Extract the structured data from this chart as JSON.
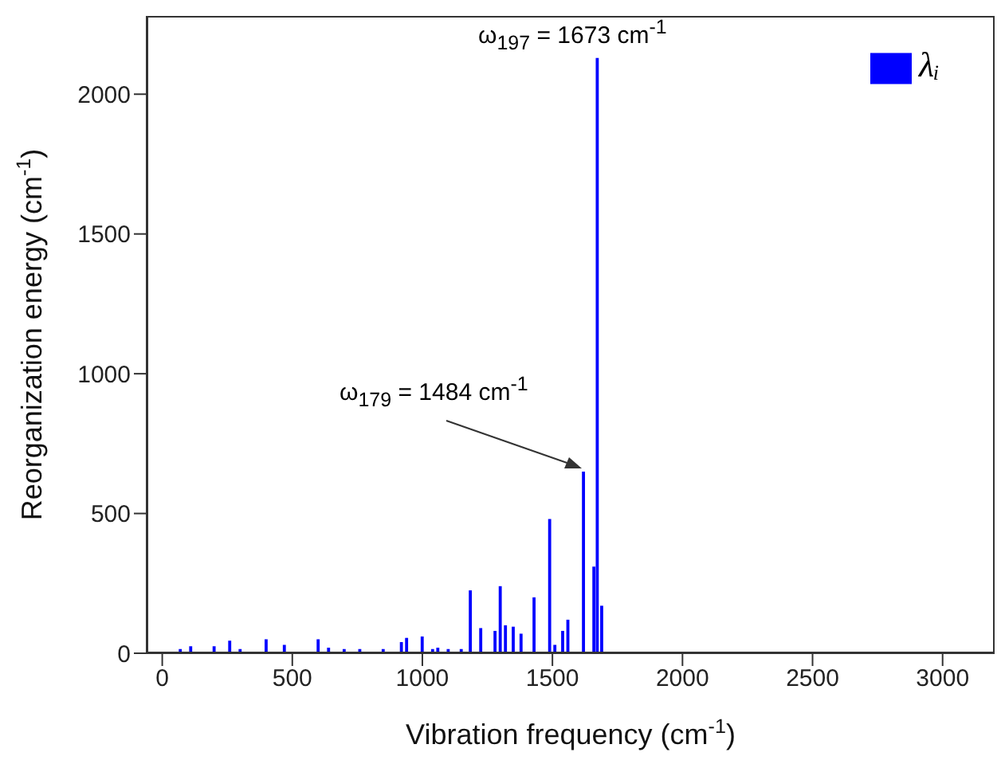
{
  "chart_data": {
    "type": "bar",
    "xlabel": "Vibration frequency (cm$^{-1}$)",
    "ylabel": "Reorganization energy (cm$^{-1}$)",
    "x": [
      70,
      110,
      200,
      260,
      300,
      400,
      470,
      600,
      640,
      700,
      760,
      850,
      920,
      940,
      1000,
      1040,
      1060,
      1100,
      1150,
      1185,
      1225,
      1280,
      1300,
      1320,
      1350,
      1380,
      1430,
      1490,
      1510,
      1540,
      1560,
      1620,
      1660,
      1673,
      1690
    ],
    "series": [
      {
        "name": "λᵢ",
        "color": "#0000ff",
        "values": [
          15,
          25,
          25,
          45,
          15,
          50,
          30,
          50,
          20,
          15,
          15,
          15,
          40,
          55,
          60,
          15,
          20,
          15,
          15,
          225,
          90,
          80,
          240,
          100,
          95,
          70,
          200,
          480,
          30,
          80,
          120,
          650,
          310,
          2130,
          170
        ]
      }
    ],
    "xlim": [
      -60,
      3200
    ],
    "xticks": [
      0,
      500,
      1000,
      1500,
      2000,
      2500,
      3000
    ],
    "ylim": [
      0,
      2280
    ],
    "yticks": [
      0,
      500,
      1000,
      1500,
      2000
    ],
    "legend": "top right",
    "annotations": [
      "ω$_{197}$ = 1673 cm$^{-1}$",
      "ω$_{179}$ = 1484 cm$^{-1}$"
    ]
  }
}
